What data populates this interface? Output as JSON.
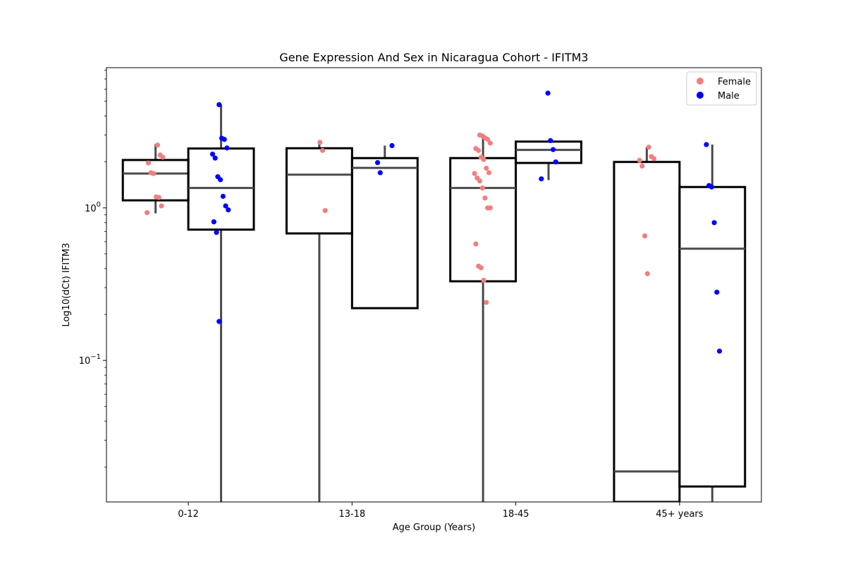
{
  "chart_data": {
    "type": "box",
    "title": "Gene Expression And Sex in Nicaragua Cohort - IFITM3",
    "xlabel": "Age Group (Years)",
    "ylabel": "Log10(dCt) IFITM3",
    "yscale": "log",
    "ylim": [
      0.0118,
      8.3
    ],
    "yticks": [
      {
        "value": 0.1,
        "base": "10",
        "exp": "−1"
      },
      {
        "value": 1,
        "base": "10",
        "exp": "0"
      }
    ],
    "grid": false,
    "legend_position": "top-right",
    "categories": [
      "0-12",
      "13-18",
      "18-45",
      "45+ years"
    ],
    "series": [
      {
        "name": "Female",
        "color": "#f08080",
        "boxes": [
          {
            "q1": 1.12,
            "median": 1.68,
            "q3": 2.06,
            "whisker_low": 0.92,
            "whisker_high": 2.62
          },
          {
            "q1": 0.68,
            "median": 1.65,
            "q3": 2.46,
            "whisker_low": 0.0118,
            "whisker_high": 2.66
          },
          {
            "q1": 0.33,
            "median": 1.35,
            "q3": 2.12,
            "whisker_low": 0.0118,
            "whisker_high": 2.95
          },
          {
            "q1": 0.0118,
            "median": 0.0187,
            "q3": 2.0,
            "whisker_low": 0.0118,
            "whisker_high": 2.5
          }
        ],
        "points": [
          [
            0.93,
            1.03,
            1.17,
            1.18,
            1.68,
            1.7,
            1.97,
            2.15,
            2.22,
            2.58
          ],
          [
            0.96,
            2.38,
            2.69
          ],
          [
            0.24,
            0.335,
            0.405,
            0.415,
            0.58,
            1.0,
            1.0,
            1.16,
            1.35,
            1.5,
            1.57,
            1.68,
            1.7,
            1.82,
            2.08,
            2.15,
            2.38,
            2.45,
            2.66,
            2.81,
            2.88,
            2.96,
            3.0
          ],
          [
            0.37,
            0.655,
            1.88,
            2.05,
            2.1,
            2.17,
            2.5
          ]
        ]
      },
      {
        "name": "Male",
        "color": "#0000ff",
        "boxes": [
          {
            "q1": 0.72,
            "median": 1.35,
            "q3": 2.45,
            "whisker_low": 0.0118,
            "whisker_high": 4.75
          },
          {
            "q1": 0.22,
            "median": 1.83,
            "q3": 2.12,
            "whisker_low": 0.22,
            "whisker_high": 2.56
          },
          {
            "q1": 1.97,
            "median": 2.4,
            "q3": 2.72,
            "whisker_low": 1.52,
            "whisker_high": 2.72
          },
          {
            "q1": 0.0149,
            "median": 0.54,
            "q3": 1.37,
            "whisker_low": 0.0118,
            "whisker_high": 2.6
          }
        ],
        "points": [
          [
            0.18,
            0.69,
            0.81,
            0.97,
            1.03,
            1.19,
            1.53,
            1.6,
            2.12,
            2.25,
            2.47,
            2.81,
            2.86,
            4.75
          ],
          [
            1.7,
            1.98,
            2.56
          ],
          [
            1.55,
            2.0,
            2.41,
            2.76,
            5.65
          ],
          [
            0.115,
            0.28,
            0.8,
            1.37,
            1.4,
            2.6
          ]
        ]
      }
    ]
  }
}
